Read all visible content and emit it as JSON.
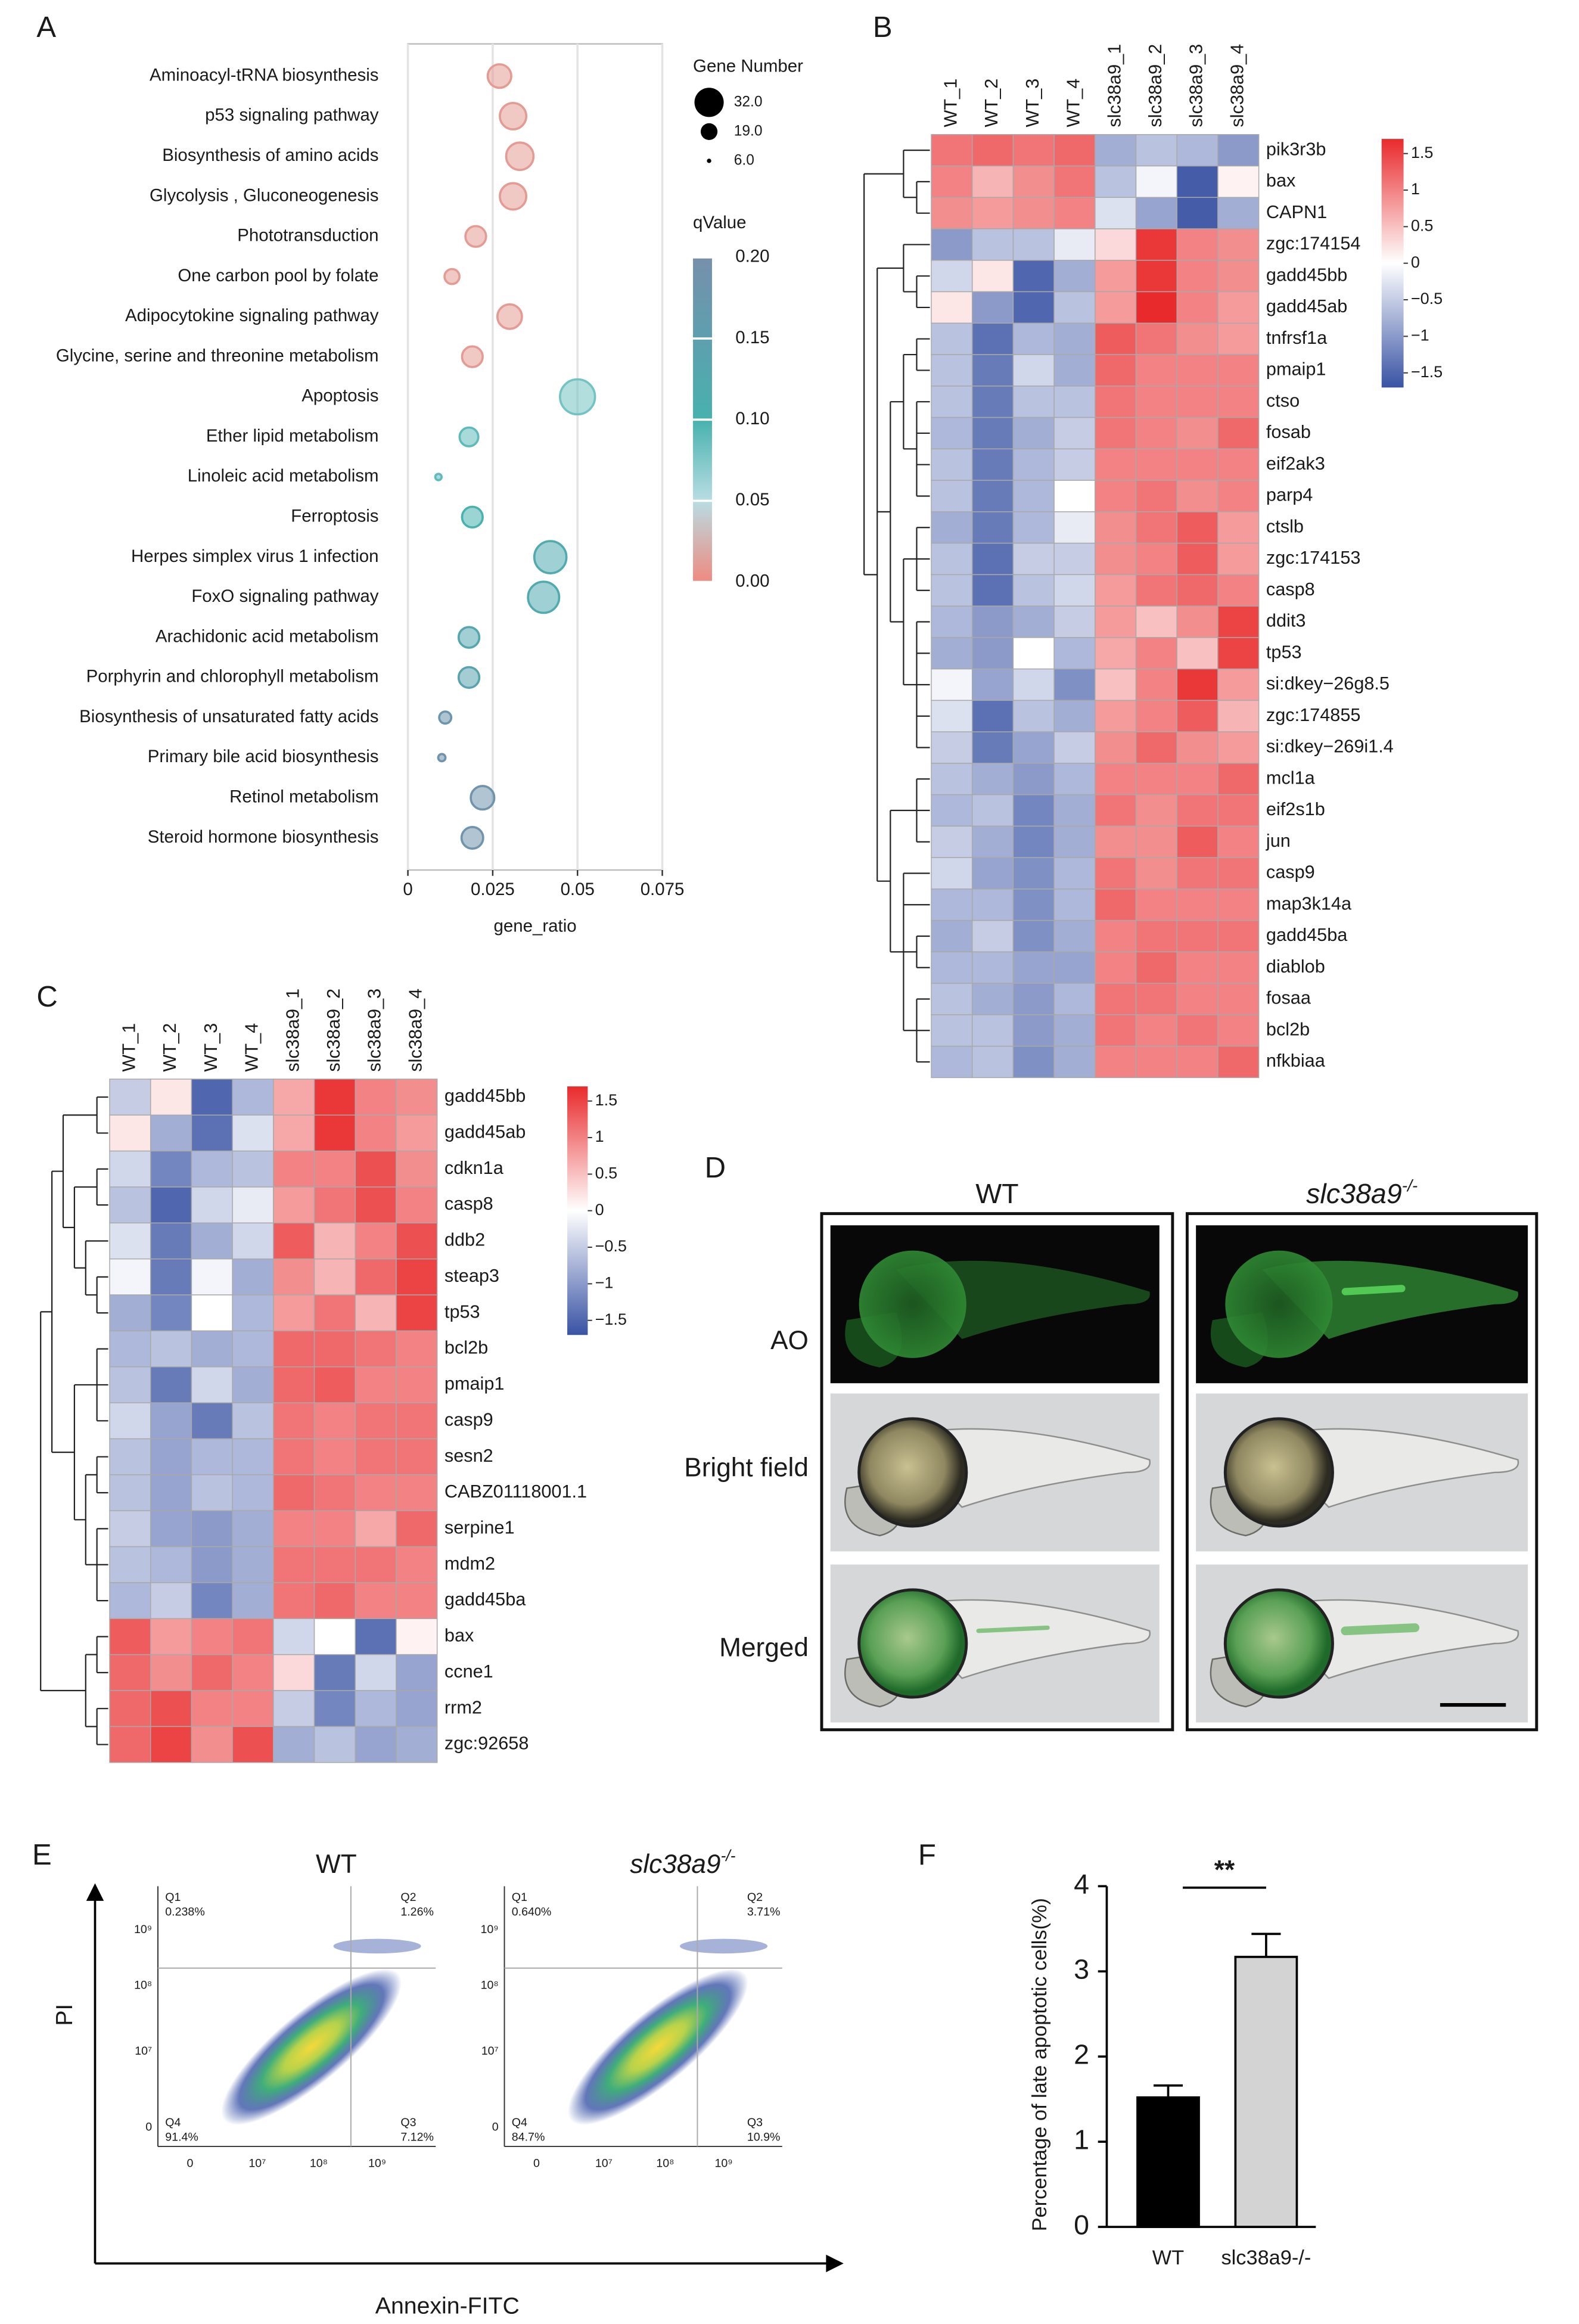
{
  "panel_labels": [
    "A",
    "B",
    "C",
    "D",
    "E",
    "F"
  ],
  "chart_data": [
    {
      "type": "bubble",
      "categories": [
        "Aminoacyl-tRNA biosynthesis",
        "p53 signaling pathway",
        "Biosynthesis of amino acids",
        "Glycolysis , Gluconeogenesis",
        "Phototransduction",
        "One carbon pool by folate",
        "Adipocytokine signaling pathway",
        "Glycine, serine and threonine metabolism",
        "Apoptosis",
        "Ether lipid metabolism",
        "Linoleic acid metabolism",
        "Ferroptosis",
        "Herpes simplex virus 1 infection",
        "FoxO signaling pathway",
        "Arachidonic acid metabolism",
        "Porphyrin and chlorophyll metabolism",
        "Biosynthesis of unsaturated fatty acids",
        "Primary bile acid biosynthesis",
        "Retinol metabolism",
        "Steroid hormone biosynthesis"
      ],
      "values": [
        0.027,
        0.031,
        0.033,
        0.031,
        0.02,
        0.013,
        0.03,
        0.019,
        0.05,
        0.018,
        0.009,
        0.019,
        0.042,
        0.04,
        0.018,
        0.018,
        0.011,
        0.01,
        0.022,
        0.019
      ],
      "sizes": [
        26,
        29,
        30,
        29,
        23,
        17,
        27,
        23,
        38,
        21,
        8,
        23,
        35,
        34,
        23,
        23,
        14,
        9,
        26,
        24
      ],
      "q_values": [
        0.01,
        0.01,
        0.01,
        0.01,
        0.01,
        0.01,
        0.01,
        0.01,
        0.08,
        0.09,
        0.09,
        0.1,
        0.12,
        0.12,
        0.13,
        0.14,
        0.18,
        0.19,
        0.19,
        0.19
      ],
      "xlim": [
        0,
        0.075
      ],
      "xticks": [
        0,
        0.025,
        0.05,
        0.075
      ],
      "x_label": "gene_ratio",
      "grid": true,
      "size_legend": {
        "title": "Gene Number",
        "ticks": [
          {
            "value": 32,
            "label": "32.0"
          },
          {
            "value": 19,
            "label": "19.0"
          },
          {
            "value": 6,
            "label": "6.0"
          }
        ]
      },
      "color_legend": {
        "title": "qValue",
        "lim": [
          0,
          0.2
        ],
        "ticks": [
          {
            "value": 0,
            "label": "0.00"
          },
          {
            "value": 0.05,
            "label": "0.05"
          },
          {
            "value": 0.1,
            "label": "0.10"
          },
          {
            "value": 0.15,
            "label": "0.15"
          },
          {
            "value": 0.2,
            "label": "0.20"
          }
        ],
        "colors": [
          "#ef8a80",
          "#b8dde3",
          "#47b2ae",
          "#5e9fae",
          "#7690ab"
        ]
      }
    },
    {
      "type": "heatmap",
      "columns": [
        "WT_1",
        "WT_2",
        "WT_3",
        "WT_4",
        "slc38a9_1",
        "slc38a9_2",
        "slc38a9_3",
        "slc38a9_4"
      ],
      "rows": [
        "pik3r3b",
        "bax",
        "CAPN1",
        "zgc:174154",
        "gadd45bb",
        "gadd45ab",
        "tnfrsf1a",
        "pmaip1",
        "ctso",
        "fosab",
        "eif2ak3",
        "parp4",
        "ctslb",
        "zgc:174153",
        "casp8",
        "ddit3",
        "tp53",
        "si:dkey−26g8.5",
        "zgc:174855",
        "si:dkey−269i1.4",
        "mcl1a",
        "eif2s1b",
        "jun",
        "casp9",
        "map3k14a",
        "gadd45ba",
        "diablob",
        "fosaa",
        "bcl2b",
        "nfkbiaa"
      ],
      "values": [
        [
          1.1,
          1.2,
          1.1,
          1.2,
          -0.8,
          -0.6,
          -0.7,
          -1.0
        ],
        [
          1.0,
          0.6,
          0.9,
          1.1,
          -0.6,
          -0.1,
          -1.6,
          0.1
        ],
        [
          0.9,
          0.8,
          0.9,
          1.0,
          -0.3,
          -0.9,
          -1.6,
          -0.8
        ],
        [
          -1.0,
          -0.6,
          -0.6,
          -0.2,
          0.3,
          1.6,
          1.0,
          0.9
        ],
        [
          -0.4,
          0.2,
          -1.5,
          -0.8,
          0.8,
          1.6,
          1.0,
          0.9
        ],
        [
          0.2,
          -1.0,
          -1.5,
          -0.6,
          0.8,
          1.7,
          1.0,
          0.8
        ],
        [
          -0.6,
          -1.4,
          -0.7,
          -0.8,
          1.3,
          1.1,
          0.9,
          0.8
        ],
        [
          -0.6,
          -1.3,
          -0.4,
          -0.8,
          1.2,
          1.0,
          1.0,
          1.0
        ],
        [
          -0.6,
          -1.3,
          -0.6,
          -0.6,
          1.1,
          1.0,
          1.0,
          1.0
        ],
        [
          -0.7,
          -1.3,
          -0.8,
          -0.5,
          1.1,
          1.0,
          0.9,
          1.2
        ],
        [
          -0.6,
          -1.3,
          -0.7,
          -0.5,
          1.0,
          1.0,
          1.0,
          1.0
        ],
        [
          -0.6,
          -1.3,
          -0.7,
          0.0,
          1.0,
          1.1,
          0.9,
          1.0
        ],
        [
          -0.8,
          -1.3,
          -0.7,
          -0.2,
          0.9,
          1.1,
          1.3,
          0.8
        ],
        [
          -0.6,
          -1.4,
          -0.5,
          -0.5,
          0.9,
          1.0,
          1.3,
          0.8
        ],
        [
          -0.6,
          -1.4,
          -0.6,
          -0.4,
          0.8,
          1.1,
          1.2,
          1.0
        ],
        [
          -0.7,
          -1.0,
          -0.8,
          -0.5,
          0.8,
          0.5,
          0.9,
          1.5
        ],
        [
          -0.8,
          -1.0,
          0.0,
          -0.7,
          0.7,
          1.0,
          0.5,
          1.5
        ],
        [
          -0.1,
          -0.9,
          -0.4,
          -1.1,
          0.5,
          1.0,
          1.6,
          0.8
        ],
        [
          -0.3,
          -1.4,
          -0.6,
          -0.8,
          0.8,
          1.0,
          1.3,
          0.6
        ],
        [
          -0.5,
          -1.3,
          -0.9,
          -0.5,
          0.9,
          1.2,
          0.9,
          0.8
        ],
        [
          -0.6,
          -0.8,
          -1.0,
          -0.7,
          1.0,
          1.0,
          1.0,
          1.2
        ],
        [
          -0.7,
          -0.6,
          -1.2,
          -0.8,
          1.1,
          0.9,
          1.1,
          1.1
        ],
        [
          -0.5,
          -0.8,
          -1.2,
          -0.8,
          0.9,
          0.9,
          1.3,
          1.0
        ],
        [
          -0.4,
          -0.9,
          -1.1,
          -0.7,
          1.1,
          0.9,
          1.1,
          1.1
        ],
        [
          -0.7,
          -0.7,
          -1.1,
          -0.7,
          1.2,
          1.0,
          1.0,
          1.0
        ],
        [
          -0.8,
          -0.5,
          -1.1,
          -0.8,
          1.0,
          1.1,
          1.1,
          1.1
        ],
        [
          -0.7,
          -0.7,
          -0.9,
          -0.9,
          1.0,
          1.2,
          1.0,
          1.0
        ],
        [
          -0.6,
          -0.8,
          -1.0,
          -0.7,
          1.1,
          1.1,
          1.0,
          1.0
        ],
        [
          -0.6,
          -0.6,
          -1.0,
          -0.8,
          1.1,
          1.0,
          1.1,
          1.0
        ],
        [
          -0.7,
          -0.6,
          -1.1,
          -0.8,
          1.0,
          1.0,
          1.0,
          1.2
        ]
      ],
      "colorbar": {
        "lim": [
          -1.7,
          1.7
        ],
        "colors": [
          "#3953a4",
          "#ffffff",
          "#e92a2c"
        ],
        "ticks": [
          1.5,
          1,
          0.5,
          0,
          {
            "value": -0.5,
            "label": "−0.5"
          },
          {
            "value": -1,
            "label": "−1"
          },
          {
            "value": -1.5,
            "label": "−1.5"
          }
        ]
      }
    },
    {
      "type": "heatmap",
      "columns": [
        "WT_1",
        "WT_2",
        "WT_3",
        "WT_4",
        "slc38a9_1",
        "slc38a9_2",
        "slc38a9_3",
        "slc38a9_4"
      ],
      "rows": [
        "gadd45bb",
        "gadd45ab",
        "cdkn1a",
        "casp8",
        "ddb2",
        "steap3",
        "tp53",
        "bcl2b",
        "pmaip1",
        "casp9",
        "sesn2",
        "CABZ01118001.1",
        "serpine1",
        "mdm2",
        "gadd45ba",
        "bax",
        "ccne1",
        "rrm2",
        "zgc:92658"
      ],
      "values": [
        [
          -0.5,
          0.2,
          -1.5,
          -0.7,
          0.7,
          1.6,
          1.0,
          0.9
        ],
        [
          0.2,
          -0.8,
          -1.4,
          -0.3,
          0.7,
          1.6,
          1.0,
          0.8
        ],
        [
          -0.4,
          -1.2,
          -0.7,
          -0.6,
          1.0,
          1.0,
          1.4,
          0.9
        ],
        [
          -0.6,
          -1.5,
          -0.4,
          -0.2,
          0.8,
          1.1,
          1.4,
          1.0
        ],
        [
          -0.3,
          -1.3,
          -0.8,
          -0.4,
          1.3,
          0.6,
          1.0,
          1.4
        ],
        [
          -0.1,
          -1.3,
          -0.1,
          -0.8,
          0.9,
          0.6,
          1.2,
          1.5
        ],
        [
          -0.8,
          -1.2,
          0.0,
          -0.7,
          0.8,
          1.1,
          0.6,
          1.5
        ],
        [
          -0.7,
          -0.6,
          -0.8,
          -0.7,
          1.2,
          1.2,
          1.1,
          1.0
        ],
        [
          -0.6,
          -1.3,
          -0.4,
          -0.8,
          1.2,
          1.3,
          1.0,
          1.0
        ],
        [
          -0.4,
          -0.9,
          -1.3,
          -0.6,
          1.1,
          1.0,
          1.1,
          1.1
        ],
        [
          -0.6,
          -0.9,
          -0.7,
          -0.7,
          1.1,
          1.0,
          1.1,
          1.1
        ],
        [
          -0.6,
          -0.9,
          -0.6,
          -0.7,
          1.2,
          1.1,
          1.0,
          1.0
        ],
        [
          -0.5,
          -0.9,
          -1.0,
          -0.8,
          1.0,
          1.0,
          0.7,
          1.2
        ],
        [
          -0.6,
          -0.7,
          -1.0,
          -0.8,
          1.1,
          1.1,
          1.1,
          1.0
        ],
        [
          -0.7,
          -0.5,
          -1.2,
          -0.8,
          1.1,
          1.2,
          1.0,
          1.0
        ],
        [
          1.3,
          0.8,
          1.0,
          1.1,
          -0.4,
          0.0,
          -1.4,
          0.1
        ],
        [
          1.2,
          0.9,
          1.2,
          1.0,
          0.3,
          -1.3,
          -0.4,
          -0.9
        ],
        [
          1.2,
          1.4,
          1.0,
          1.0,
          -0.5,
          -1.2,
          -0.7,
          -0.9
        ],
        [
          1.2,
          1.5,
          0.9,
          1.4,
          -0.8,
          -0.6,
          -0.9,
          -0.8
        ]
      ],
      "colorbar": {
        "lim": [
          -1.7,
          1.7
        ],
        "colors": [
          "#3953a4",
          "#ffffff",
          "#e92a2c"
        ],
        "ticks": [
          1.5,
          1,
          0.5,
          0,
          {
            "value": -0.5,
            "label": "−0.5"
          },
          {
            "value": -1,
            "label": "−1"
          },
          {
            "value": -1.5,
            "label": "−1.5"
          }
        ]
      }
    },
    {
      "type": "bar",
      "categories": [
        "WT",
        "slc38a9-/-"
      ],
      "values": [
        1.52,
        3.17
      ],
      "errors": [
        0.14,
        0.27
      ],
      "colors": [
        "#000000",
        "#d3d3d3"
      ],
      "ylim": [
        0,
        4
      ],
      "yticks": [
        0,
        1,
        2,
        3,
        4
      ],
      "y_label": "Percentage of late apoptotic cells(%)",
      "annotation": "**"
    }
  ],
  "panel_d": {
    "columns": [
      {
        "text": "WT"
      },
      {
        "text": "slc38a9",
        "sup": "-/-"
      }
    ],
    "rows": [
      "AO",
      "Bright field",
      "Merged"
    ]
  },
  "panel_e": {
    "plots": [
      {
        "title": {
          "text": "WT"
        },
        "quadrants": [
          {
            "name": "Q1",
            "label": "0.238%"
          },
          {
            "name": "Q2",
            "label": "1.26%"
          },
          {
            "name": "Q3",
            "label": "7.12%"
          },
          {
            "name": "Q4",
            "label": "91.4%"
          }
        ]
      },
      {
        "title": {
          "text": "slc38a9",
          "sup": "-/-"
        },
        "quadrants": [
          {
            "name": "Q1",
            "label": "0.640%"
          },
          {
            "name": "Q2",
            "label": "3.71%"
          },
          {
            "name": "Q3",
            "label": "10.9%"
          },
          {
            "name": "Q4",
            "label": "84.7%"
          }
        ]
      }
    ],
    "yticks": [
      "10⁹",
      "10⁸",
      "10⁷",
      "0"
    ],
    "xticks": [
      "0",
      "10⁷",
      "10⁸",
      "10⁹"
    ],
    "y_label": "PI",
    "x_label": "Annexin-FITC"
  }
}
